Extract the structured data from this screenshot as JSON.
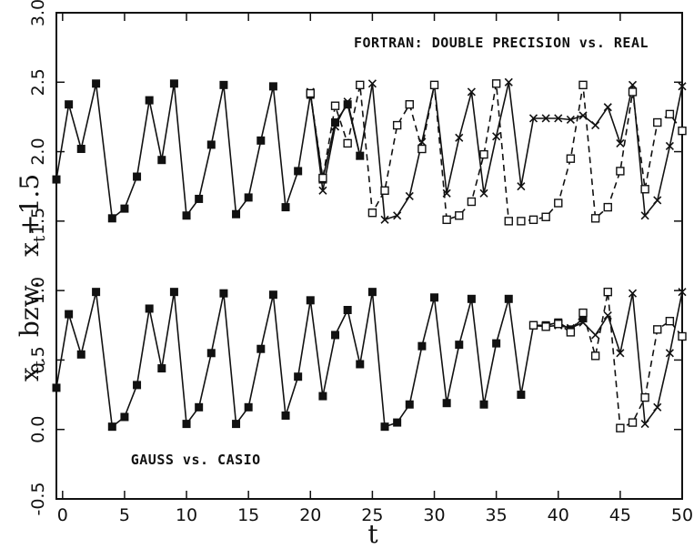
{
  "chart_data": {
    "type": "line",
    "xlabel": "t",
    "ylabel": {
      "lower": "x",
      "lower_sub": "t",
      "middle": "bzw.",
      "upper": "x",
      "upper_sub": "t",
      "upper_suffix": "+1.5"
    },
    "xlim": [
      -0.5,
      50
    ],
    "ylim": [
      -0.5,
      3.0
    ],
    "xticks": [
      0,
      5,
      10,
      15,
      20,
      25,
      30,
      35,
      40,
      45,
      50
    ],
    "xtick_labels": [
      "0",
      "5",
      "10",
      "15",
      "20",
      "25",
      "30",
      "35",
      "40",
      "45",
      "50"
    ],
    "yticks": [
      -0.5,
      0.0,
      0.5,
      1.0,
      1.5,
      2.0,
      2.5,
      3.0
    ],
    "ytick_labels": [
      "-0.5",
      "0.0",
      "0.5",
      "1.0",
      "1.5",
      "2.0",
      "2.5",
      "3.0"
    ],
    "grid": false,
    "legend": null,
    "annotations": [
      {
        "text": "FORTRAN: DOUBLE PRECISION vs. REAL",
        "x": 23.5,
        "y": 2.75
      },
      {
        "text": "GAUSS vs. CASIO",
        "x": 5.5,
        "y": -0.25
      }
    ],
    "series": [
      {
        "group": "upper",
        "style": "solid",
        "marker": "filled-square",
        "x": [
          -0.5,
          0.5,
          1.5,
          2.7,
          4.0,
          5.0,
          6.0,
          7.0,
          8.0,
          9.0,
          10.0,
          11.0,
          12.0,
          13.0,
          14.0,
          15.0,
          16.0,
          17.0,
          18.0,
          19.0,
          20.0,
          21.0,
          22.0,
          23.0,
          24.0
        ],
        "y": [
          1.8,
          2.34,
          2.02,
          2.49,
          1.52,
          1.59,
          1.82,
          2.37,
          1.94,
          2.49,
          1.54,
          1.66,
          2.05,
          2.48,
          1.55,
          1.67,
          2.08,
          2.47,
          1.6,
          1.86,
          2.41,
          1.8,
          2.21,
          2.34,
          1.97
        ]
      },
      {
        "group": "upper",
        "style": "solid",
        "marker": "cross",
        "x": [
          20,
          21,
          22,
          23,
          24,
          25,
          26,
          27,
          28,
          29,
          30,
          31,
          32,
          33,
          34,
          35,
          36,
          37,
          38,
          39,
          40,
          41,
          42,
          43,
          44,
          45,
          46,
          47,
          48,
          49,
          50
        ],
        "y": [
          2.43,
          1.72,
          2.18,
          2.36,
          1.97,
          2.49,
          1.51,
          1.54,
          1.68,
          2.07,
          2.48,
          1.7,
          2.1,
          2.43,
          1.7,
          2.11,
          2.5,
          1.75,
          2.24,
          2.24,
          2.24,
          2.23,
          2.26,
          2.19,
          2.32,
          2.06,
          2.48,
          1.54,
          1.65,
          2.04,
          2.47
        ]
      },
      {
        "group": "upper",
        "style": "dashed",
        "marker": "open-square",
        "x": [
          20,
          21,
          22,
          23,
          24,
          25,
          26,
          27,
          28,
          29,
          30,
          31,
          32,
          33,
          34,
          35,
          36,
          37,
          38,
          39,
          40,
          41,
          42,
          43,
          44,
          45,
          46,
          47,
          48,
          49,
          50
        ],
        "y": [
          2.42,
          1.81,
          2.33,
          2.06,
          2.48,
          1.56,
          1.72,
          2.19,
          2.34,
          2.02,
          2.48,
          1.51,
          1.54,
          1.64,
          1.98,
          2.49,
          1.5,
          1.5,
          1.51,
          1.53,
          1.63,
          1.95,
          2.48,
          1.52,
          1.6,
          1.86,
          2.43,
          1.73,
          2.21,
          2.27,
          2.15
        ]
      },
      {
        "group": "lower",
        "style": "solid",
        "marker": "filled-square",
        "x": [
          -0.5,
          0.5,
          1.5,
          2.7,
          4.0,
          5.0,
          6.0,
          7.0,
          8.0,
          9.0,
          10.0,
          11.0,
          12.0,
          13.0,
          14.0,
          15.0,
          16.0,
          17.0,
          18.0,
          19.0,
          20.0,
          21.0,
          22.0,
          23.0,
          24.0,
          25.0,
          26.0,
          27.0,
          28.0,
          29.0,
          30.0,
          31.0,
          32.0,
          33.0,
          34.0,
          35.0,
          36.0,
          37.0,
          38.0,
          39.0,
          40.0,
          41.0,
          42.0
        ],
        "y": [
          0.3,
          0.83,
          0.54,
          0.99,
          0.02,
          0.09,
          0.32,
          0.87,
          0.44,
          0.99,
          0.04,
          0.16,
          0.55,
          0.98,
          0.04,
          0.16,
          0.58,
          0.97,
          0.1,
          0.38,
          0.93,
          0.24,
          0.68,
          0.86,
          0.47,
          0.99,
          0.02,
          0.05,
          0.18,
          0.6,
          0.95,
          0.19,
          0.61,
          0.94,
          0.18,
          0.62,
          0.94,
          0.25,
          0.75,
          0.75,
          0.77,
          0.72,
          0.8
        ]
      },
      {
        "group": "lower",
        "style": "solid",
        "marker": "cross",
        "x": [
          38,
          39,
          40,
          41,
          42,
          43,
          44,
          45,
          46,
          47,
          48,
          49,
          50
        ],
        "y": [
          0.75,
          0.74,
          0.75,
          0.73,
          0.77,
          0.68,
          0.82,
          0.55,
          0.98,
          0.04,
          0.16,
          0.55,
          0.99
        ]
      },
      {
        "group": "lower",
        "style": "dashed",
        "marker": "open-square",
        "x": [
          38,
          39,
          40,
          41,
          42,
          43,
          44,
          45,
          46,
          47,
          48,
          49,
          50
        ],
        "y": [
          0.75,
          0.74,
          0.76,
          0.7,
          0.84,
          0.53,
          0.99,
          0.01,
          0.05,
          0.23,
          0.72,
          0.78,
          0.67
        ]
      }
    ]
  }
}
